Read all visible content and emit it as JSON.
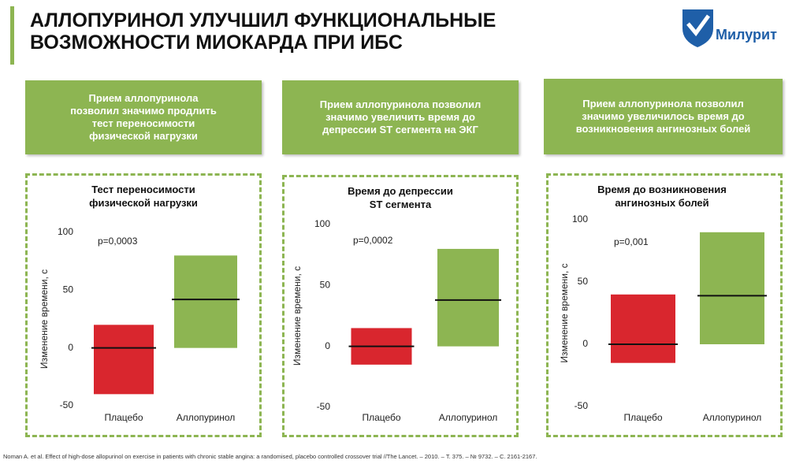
{
  "header": {
    "title": "АЛЛОПУРИНОЛ УЛУЧШИЛ ФУНКЦИОНАЛЬНЫЕ\nВОЗМОЖНОСТИ МИОКАРДА ПРИ ИБС",
    "logo": "Милурит"
  },
  "boxes": [
    "Прием аллопуринола\nпозволил значимо продлить\nтест переносимости\nфизической нагрузки",
    "Прием аллопуринола позволил\nзначимо увеличить время до\nдепрессии ST сегмента на ЭКГ",
    "Прием аллопуринола позволил\nзначимо увеличилось время до\nвозникновения ангинозных болей"
  ],
  "chart_data": [
    {
      "type": "floating_bar",
      "title": "Тест переносимости\nфизической нагрузки",
      "annotation": "p=0,0003",
      "ylabel": "Изменение времени, с",
      "categories": [
        "Плацебо",
        "Аллопуринол"
      ],
      "low": [
        -40,
        0
      ],
      "high": [
        20,
        80
      ],
      "median": [
        0,
        42
      ],
      "colors": [
        "#d9262e",
        "#8db552"
      ],
      "ylim": [
        -50,
        100
      ],
      "yticks": [
        -50,
        0,
        50,
        100
      ]
    },
    {
      "type": "floating_bar",
      "title": "Время до депрессии\nST сегмента",
      "annotation": "p=0,0002",
      "ylabel": "Изменение времени, с",
      "categories": [
        "Плацебо",
        "Аллопуринол"
      ],
      "low": [
        -15,
        0
      ],
      "high": [
        15,
        80
      ],
      "median": [
        0,
        38
      ],
      "colors": [
        "#d9262e",
        "#8db552"
      ],
      "ylim": [
        -50,
        100
      ],
      "yticks": [
        -50,
        0,
        50,
        100
      ]
    },
    {
      "type": "floating_bar",
      "title": "Время до возникновения\nангинозных болей",
      "annotation": "p=0,001",
      "ylabel": "Изменение времени, с",
      "categories": [
        "Плацебо",
        "Аллопуринол"
      ],
      "low": [
        -15,
        0
      ],
      "high": [
        40,
        90
      ],
      "median": [
        0,
        39
      ],
      "colors": [
        "#d9262e",
        "#8db552"
      ],
      "ylim": [
        -50,
        100
      ],
      "yticks": [
        -50,
        0,
        50,
        100
      ]
    }
  ],
  "footnote": "Noman A. et al. Effect of high-dose allopurinol on exercise in patients with chronic stable angina: a randomised, placebo controlled crossover trial //The Lancet. – 2010. – Т. 375. – № 9732. – С. 2161-2167."
}
